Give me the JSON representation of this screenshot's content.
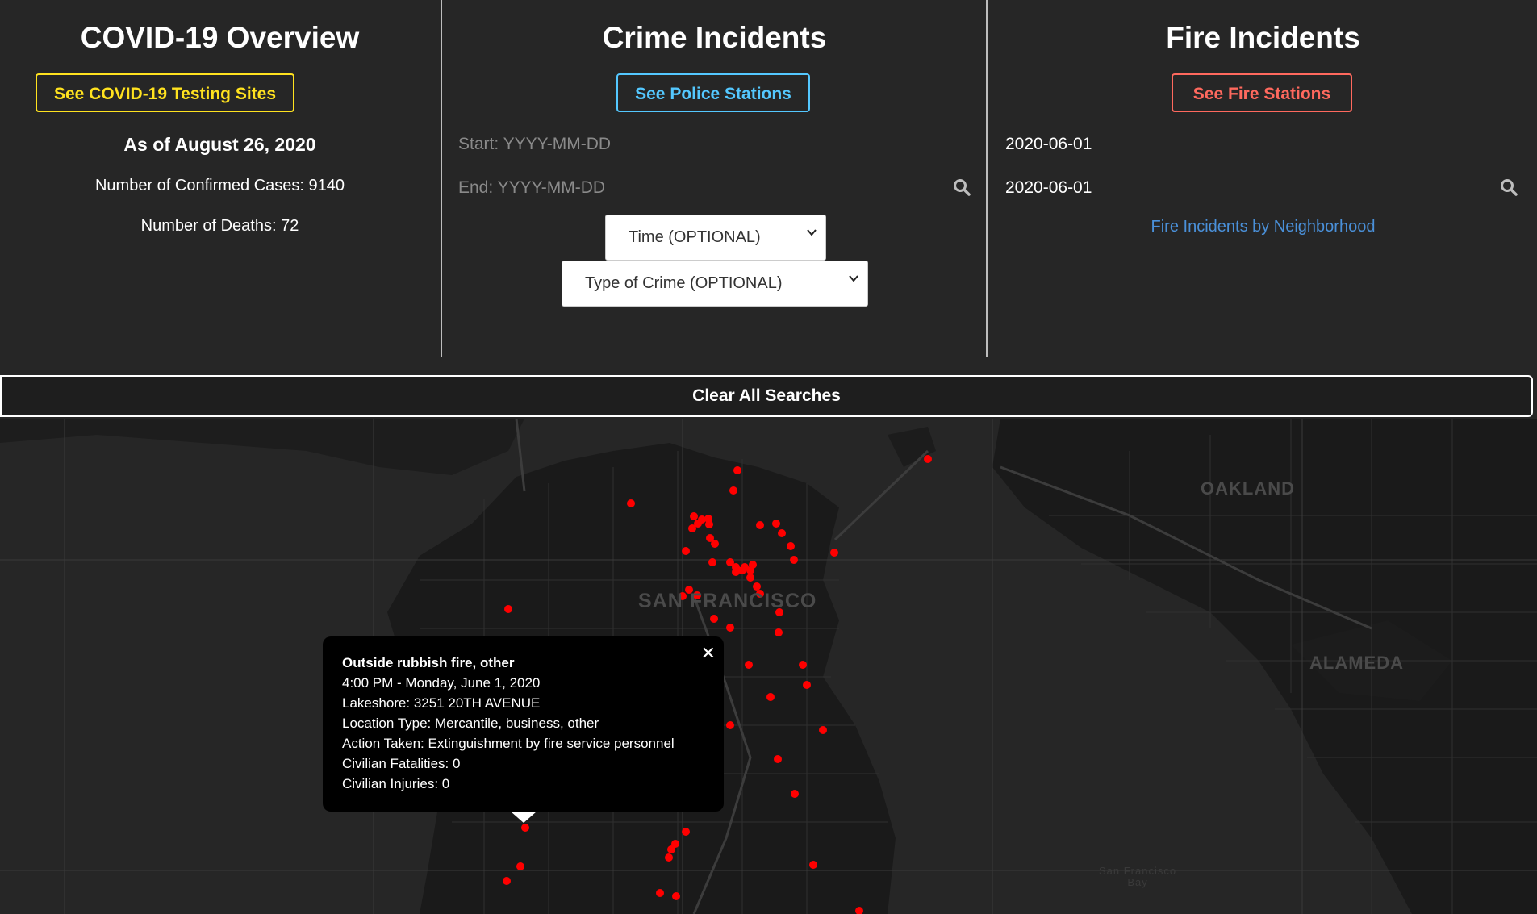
{
  "covid": {
    "title": "COVID-19 Overview",
    "testing_button": "See COVID-19 Testing Sites",
    "as_of": "As of August 26, 2020",
    "cases": "Number of Confirmed Cases: 9140",
    "deaths": "Number of Deaths: 72"
  },
  "crime": {
    "title": "Crime Incidents",
    "police_button": "See Police Stations",
    "start_placeholder": "Start: YYYY-MM-DD",
    "end_placeholder": "End: YYYY-MM-DD",
    "time_select": "Time (OPTIONAL)",
    "type_select": "Type of Crime (OPTIONAL)"
  },
  "fire": {
    "title": "Fire Incidents",
    "stations_button": "See Fire Stations",
    "start_value": "2020-06-01",
    "end_value": "2020-06-01",
    "neighborhood_link": "Fire Incidents by Neighborhood"
  },
  "clear_label": "Clear All Searches",
  "map": {
    "labels": {
      "sf": "SAN FRANCISCO",
      "oakland": "OAKLAND",
      "alameda": "ALAMEDA",
      "bay_line1": "San Francisco",
      "bay_line2": "Bay"
    },
    "marker_color": "#ff0000",
    "popup": {
      "title": "Outside rubbish fire, other",
      "time": "4:00 PM - Monday, June 1, 2020",
      "location": "Lakeshore: 3251 20TH AVENUE",
      "location_type": "Location Type: Mercantile, business, other",
      "action": "Action Taken: Extinguishment by fire service personnel",
      "fatalities": "Civilian Fatalities: 0",
      "injuries": "Civilian Injuries: 0"
    }
  },
  "colors": {
    "covid_accent": "#ffe21f",
    "police_accent": "#54c8ff",
    "fire_accent": "#ff695e",
    "link": "#4a90d9"
  }
}
